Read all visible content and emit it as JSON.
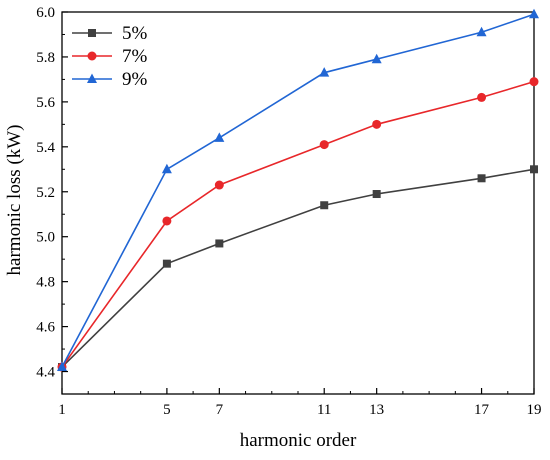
{
  "chart_data": {
    "type": "line",
    "title": "",
    "xlabel": "harmonic order",
    "ylabel": "harmonic loss (kW)",
    "x": [
      1,
      5,
      7,
      11,
      13,
      17,
      19
    ],
    "x_tick_labels": [
      "1",
      "5",
      "7",
      "11",
      "13",
      "17",
      "19"
    ],
    "xlim": [
      1,
      19
    ],
    "ylim": [
      4.3,
      6.0
    ],
    "y_tick_labels": [
      "4.4",
      "4.6",
      "4.8",
      "5.0",
      "5.2",
      "5.4",
      "5.6",
      "5.8",
      "6.0"
    ],
    "grid": false,
    "legend_position": "top-left",
    "series": [
      {
        "name": "5%",
        "color": "#404040",
        "marker": "square",
        "values": [
          4.42,
          4.88,
          4.97,
          5.14,
          5.19,
          5.26,
          5.3
        ]
      },
      {
        "name": "7%",
        "color": "#e8272a",
        "marker": "circle",
        "values": [
          4.42,
          5.07,
          5.23,
          5.41,
          5.5,
          5.62,
          5.69
        ]
      },
      {
        "name": "9%",
        "color": "#2166d4",
        "marker": "triangle",
        "values": [
          4.42,
          5.3,
          5.44,
          5.73,
          5.79,
          5.91,
          5.99
        ]
      }
    ]
  }
}
